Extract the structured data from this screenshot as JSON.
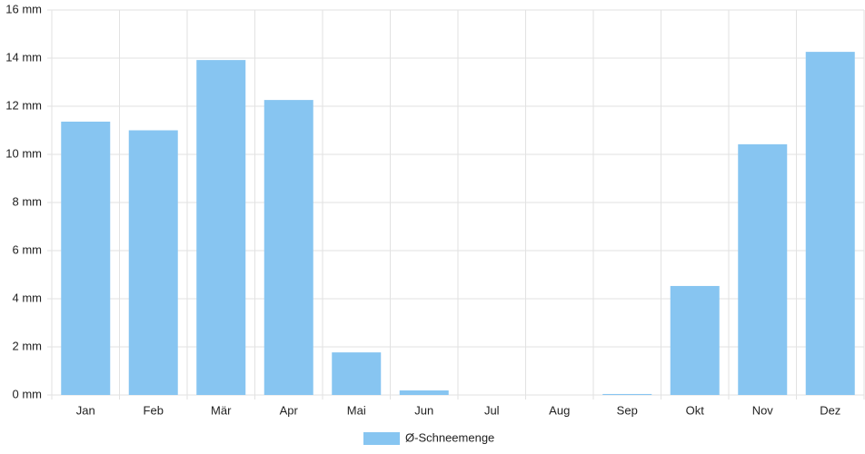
{
  "chart_data": {
    "type": "bar",
    "categories": [
      "Jan",
      "Feb",
      "Mär",
      "Apr",
      "Mai",
      "Jun",
      "Jul",
      "Aug",
      "Sep",
      "Okt",
      "Nov",
      "Dez"
    ],
    "series": [
      {
        "name": "Ø-Schneemenge",
        "color": "#87c5f1",
        "values": [
          11.36,
          11.0,
          13.92,
          12.26,
          1.77,
          0.19,
          0,
          0,
          0.04,
          4.53,
          10.42,
          14.26
        ]
      }
    ],
    "ylim": [
      0,
      16
    ],
    "yticks": [
      {
        "value": 0,
        "label": "0 mm"
      },
      {
        "value": 2,
        "label": "2 mm"
      },
      {
        "value": 4,
        "label": "4 mm"
      },
      {
        "value": 6,
        "label": "6 mm"
      },
      {
        "value": 8,
        "label": "8 mm"
      },
      {
        "value": 10,
        "label": "10 mm"
      },
      {
        "value": 12,
        "label": "12 mm"
      },
      {
        "value": 14,
        "label": "14 mm"
      },
      {
        "value": 16,
        "label": "16 mm"
      }
    ],
    "grid": true,
    "legend": "bottom"
  }
}
